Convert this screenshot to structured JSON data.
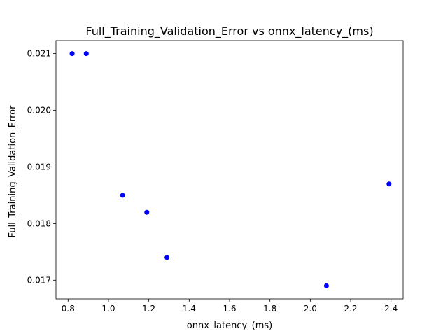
{
  "chart_data": {
    "type": "scatter",
    "title": "Full_Training_Validation_Error vs onnx_latency_(ms)",
    "xlabel": "onnx_latency_(ms)",
    "ylabel": "Full_Training_Validation_Error",
    "xlim": [
      0.74,
      2.46
    ],
    "ylim": [
      0.01667,
      0.02123
    ],
    "xticks": [
      0.8,
      1.0,
      1.2,
      1.4,
      1.6,
      1.8,
      2.0,
      2.2,
      2.4
    ],
    "xtick_labels": [
      "0.8",
      "1.0",
      "1.2",
      "1.4",
      "1.6",
      "1.8",
      "2.0",
      "2.2",
      "2.4"
    ],
    "yticks": [
      0.017,
      0.018,
      0.019,
      0.02,
      0.021
    ],
    "ytick_labels": [
      "0.017",
      "0.018",
      "0.019",
      "0.020",
      "0.021"
    ],
    "grid": false,
    "marker_color": "#0000ff",
    "points": [
      {
        "x": 0.82,
        "y": 0.021
      },
      {
        "x": 0.89,
        "y": 0.021
      },
      {
        "x": 1.07,
        "y": 0.0185
      },
      {
        "x": 1.19,
        "y": 0.0182
      },
      {
        "x": 1.29,
        "y": 0.0174
      },
      {
        "x": 2.08,
        "y": 0.0169
      },
      {
        "x": 2.39,
        "y": 0.0187
      }
    ]
  }
}
